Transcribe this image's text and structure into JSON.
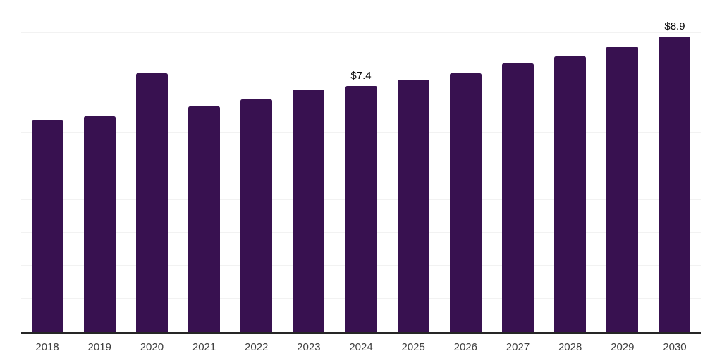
{
  "chart_data": {
    "type": "bar",
    "categories": [
      "2018",
      "2019",
      "2020",
      "2021",
      "2022",
      "2023",
      "2024",
      "2025",
      "2026",
      "2027",
      "2028",
      "2029",
      "2030"
    ],
    "values": [
      6.4,
      6.5,
      7.8,
      6.8,
      7.0,
      7.3,
      7.4,
      7.6,
      7.8,
      8.1,
      8.3,
      8.6,
      8.9
    ],
    "data_labels": {
      "2024": "$7.4",
      "2030": "$8.9"
    },
    "title": "",
    "xlabel": "",
    "ylabel": "",
    "ylim": [
      0,
      10
    ],
    "grid_step": 1,
    "grid": true,
    "legend": false,
    "colors": {
      "bar": "#381150",
      "gridline": "#F2F2F2",
      "axis": "#262626",
      "x_label": "#404040",
      "value_label": "#0A0A0A"
    }
  }
}
